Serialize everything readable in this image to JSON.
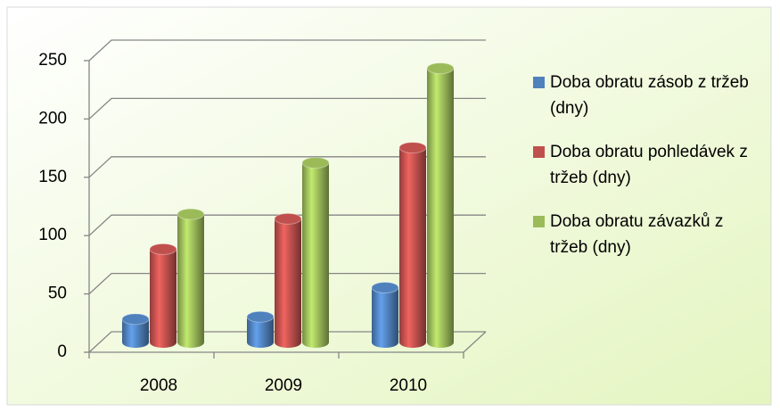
{
  "chart_data": {
    "type": "bar3d",
    "categories": [
      "2008",
      "2009",
      "2010"
    ],
    "series": [
      {
        "name": "Doba obratu zásob z tržeb (dny)",
        "color": "#4f81bd",
        "values": [
          20,
          22,
          47
        ]
      },
      {
        "name": "Doba obratu pohledávek z tržeb (dny)",
        "color": "#c0504d",
        "values": [
          80,
          106,
          167
        ]
      },
      {
        "name": "Doba obratu závazků z tržeb (dny)",
        "color": "#9bbb59",
        "values": [
          110,
          154,
          235
        ]
      }
    ],
    "ylim": [
      0,
      250
    ],
    "yticks": [
      0,
      50,
      100,
      150,
      200,
      250
    ],
    "grid": true,
    "legend": "right"
  }
}
